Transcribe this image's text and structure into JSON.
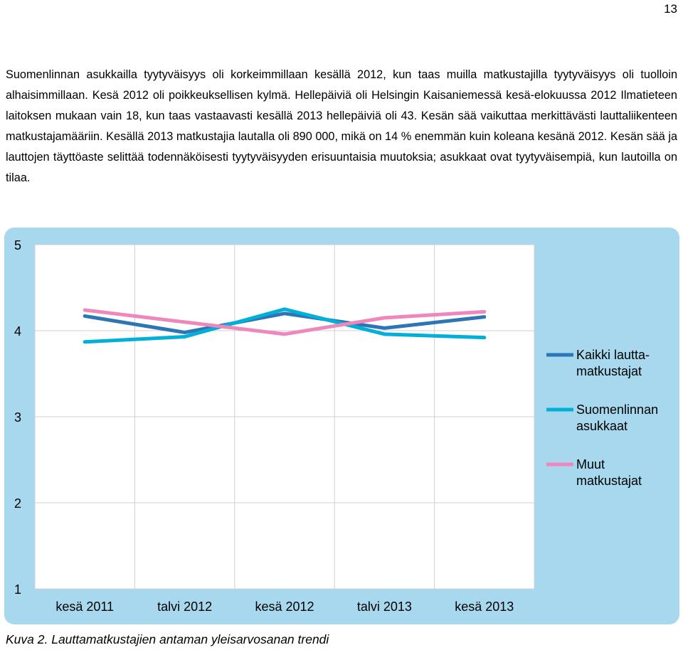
{
  "page": {
    "number": "13",
    "paragraph": "Suomenlinnan asukkailla tyytyväisyys oli korkeimmillaan kesällä 2012, kun taas muilla matkustajilla tyytyväisyys oli tuolloin alhaisimmillaan. Kesä 2012 oli poikkeuksellisen kylmä. Hellepäiviä oli Helsingin Kaisaniemessä kesä-elokuussa 2012 Ilmatieteen laitoksen mukaan vain 18, kun taas vastaavasti kesällä 2013 hellepäiviä oli 43. Kesän sää vaikuttaa merkittävästi lauttaliikenteen matkustajamääriin. Kesällä 2013 matkustajia lautalla oli 890 000, mikä on 14 % enemmän kuin koleana kesänä 2012. Kesän sää ja lauttojen täyttöaste selittää todennäköisesti tyytyväisyyden erisuuntaisia muutoksia; asukkaat ovat tyytyväisempiä, kun lautoilla on tilaa.",
    "caption": "Kuva 2. Lauttamatkustajien antaman yleisarvosanan trendi"
  },
  "chart_data": {
    "type": "line",
    "categories": [
      "kesä 2011",
      "talvi 2012",
      "kesä 2012",
      "talvi 2013",
      "kesä 2013"
    ],
    "y_ticks": [
      "1",
      "2",
      "3",
      "4",
      "5"
    ],
    "ylim": [
      1,
      5
    ],
    "grid": true,
    "legend_position": "right",
    "background_color": "#a8d8ee",
    "series": [
      {
        "name_lines": [
          "Kaikki lautta-",
          "matkustajat"
        ],
        "color": "#2e75b6",
        "values": [
          4.17,
          3.98,
          4.2,
          4.03,
          4.16
        ]
      },
      {
        "name_lines": [
          "Suomenlinnan",
          "asukkaat"
        ],
        "color": "#00b0d8",
        "values": [
          3.87,
          3.93,
          4.25,
          3.96,
          3.92
        ]
      },
      {
        "name_lines": [
          "Muut",
          "matkustajat"
        ],
        "color": "#ee88bb",
        "values": [
          4.24,
          4.1,
          3.96,
          4.15,
          4.22
        ]
      }
    ]
  }
}
